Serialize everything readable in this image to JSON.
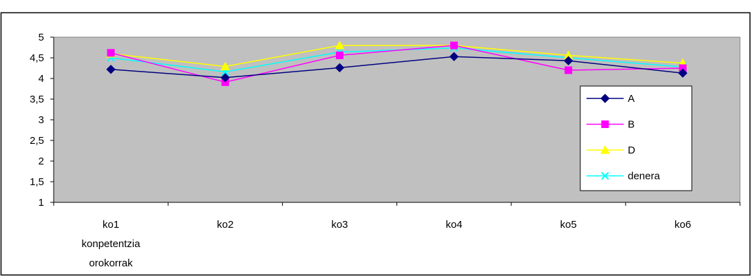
{
  "chart_data": {
    "type": "line",
    "categories": [
      "ko1\nkonpetentzia\norokorrak",
      "ko2",
      "ko3",
      "ko4",
      "ko5",
      "ko6"
    ],
    "ylim": [
      1,
      5
    ],
    "yticks": [
      "1",
      "1,5",
      "2",
      "2,5",
      "3",
      "3,5",
      "4",
      "4,5",
      "5"
    ],
    "grid": false,
    "plot_background": "#c0c0c0",
    "legend_position": "right",
    "series": [
      {
        "name": "A",
        "values": [
          4.22,
          4.02,
          4.26,
          4.53,
          4.43,
          4.13
        ],
        "color": "#000080",
        "marker": "diamond"
      },
      {
        "name": "B",
        "values": [
          4.62,
          3.91,
          4.56,
          4.8,
          4.2,
          4.25
        ],
        "color": "#ff00ff",
        "marker": "square"
      },
      {
        "name": "D",
        "values": [
          4.6,
          4.29,
          4.8,
          4.8,
          4.56,
          4.37
        ],
        "color": "#ffff00",
        "marker": "triangle"
      },
      {
        "name": "denera",
        "values": [
          4.5,
          4.16,
          4.64,
          4.74,
          4.5,
          4.28
        ],
        "color": "#00ffff",
        "marker": "x"
      }
    ]
  }
}
